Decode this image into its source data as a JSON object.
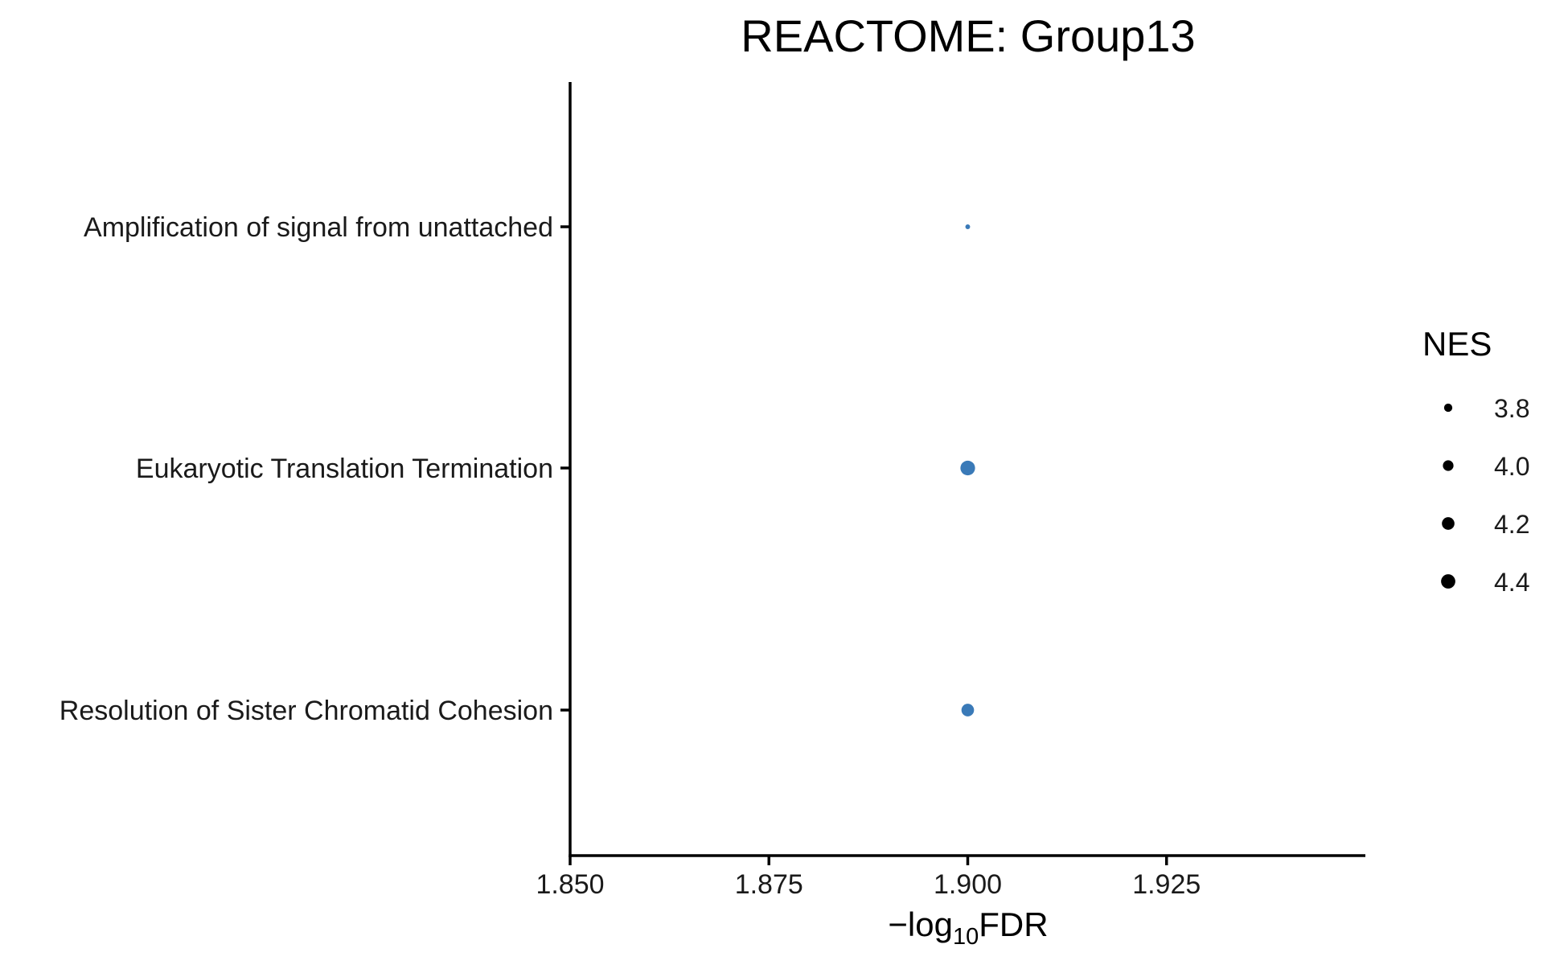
{
  "chart_data": {
    "type": "scatter",
    "title": "REACTOME: Group13",
    "xlabel": {
      "prefix": "−log",
      "subscript": "10",
      "suffix": "FDR"
    },
    "ylabel": "",
    "xlim": [
      1.85,
      1.95
    ],
    "x_ticks": [
      1.85,
      1.875,
      1.9,
      1.925
    ],
    "x_tick_labels": [
      "1.850",
      "1.875",
      "1.900",
      "1.925"
    ],
    "categories": [
      "Amplification  of signal from unattached",
      "Eukaryotic Translation Termination",
      "Resolution of Sister Chromatid Cohesion"
    ],
    "points": [
      {
        "category": "Amplification  of signal from unattached",
        "x": 1.9,
        "nes": 3.6
      },
      {
        "category": "Eukaryotic Translation Termination",
        "x": 1.9,
        "nes": 4.45
      },
      {
        "category": "Resolution of Sister Chromatid Cohesion",
        "x": 1.9,
        "nes": 4.2
      }
    ],
    "point_color": "#3a7ab8",
    "size_legend": {
      "title": "NES",
      "values": [
        3.8,
        4.0,
        4.2,
        4.4
      ],
      "labels": [
        "3.8",
        "4.0",
        "4.2",
        "4.4"
      ],
      "color": "#000000",
      "placement": "right"
    },
    "grid": false
  }
}
